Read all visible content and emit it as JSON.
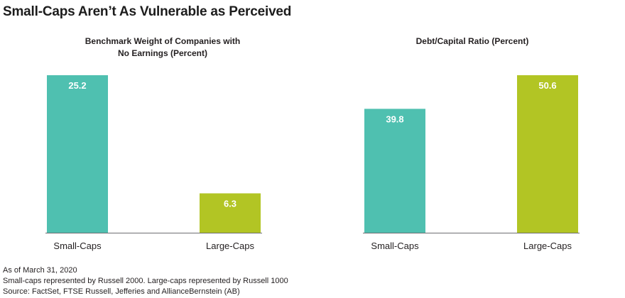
{
  "title": "Small-Caps Aren’t As Vulnerable as Perceived",
  "colors": {
    "small_caps": "#4fc0b0",
    "large_caps": "#b2c524",
    "baseline": "#6d6e71"
  },
  "chart_data": [
    {
      "type": "bar",
      "title_lines": [
        "Benchmark Weight of Companies with",
        "No Earnings (Percent)"
      ],
      "categories": [
        "Small-Caps",
        "Large-Caps"
      ],
      "values": [
        25.2,
        6.3
      ],
      "value_labels": [
        "25.2",
        "6.3"
      ],
      "ylim": [
        0,
        25.2
      ],
      "grid": false
    },
    {
      "type": "bar",
      "title_lines": [
        "Debt/Capital Ratio (Percent)"
      ],
      "categories": [
        "Small-Caps",
        "Large-Caps"
      ],
      "values": [
        39.8,
        50.6
      ],
      "value_labels": [
        "39.8",
        "50.6"
      ],
      "ylim": [
        0,
        50.6
      ],
      "grid": false
    }
  ],
  "footnotes": [
    "As of March 31, 2020",
    "Small-caps represented by Russell 2000. Large-caps represented by Russell 1000",
    "Source: FactSet, FTSE Russell, Jefferies and AllianceBernstein (AB)"
  ]
}
